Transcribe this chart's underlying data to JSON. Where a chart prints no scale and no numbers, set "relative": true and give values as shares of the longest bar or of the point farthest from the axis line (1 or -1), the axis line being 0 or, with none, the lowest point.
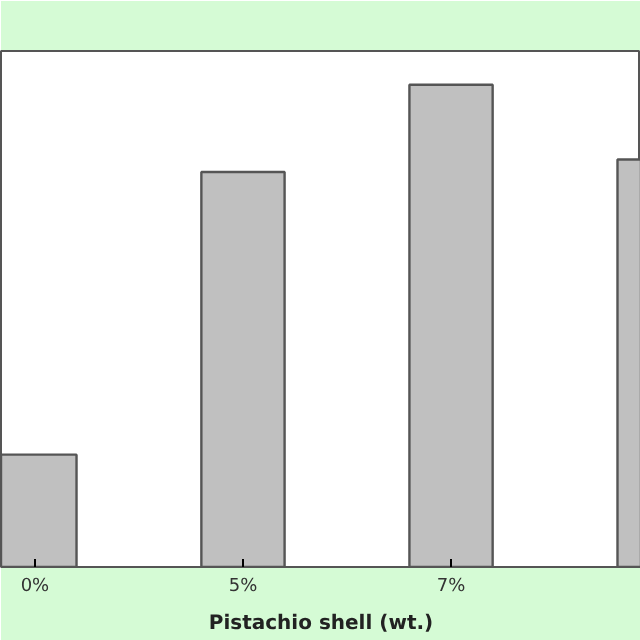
{
  "chart_data": {
    "type": "bar",
    "xlabel": "Pistachio shell (wt.)",
    "categories": [
      "0%",
      "5%",
      "7%",
      null
    ],
    "values": [
      0.233,
      0.819,
      1,
      0.845
    ],
    "color": "#c0c0c0",
    "relative": true,
    "grid": false
  }
}
